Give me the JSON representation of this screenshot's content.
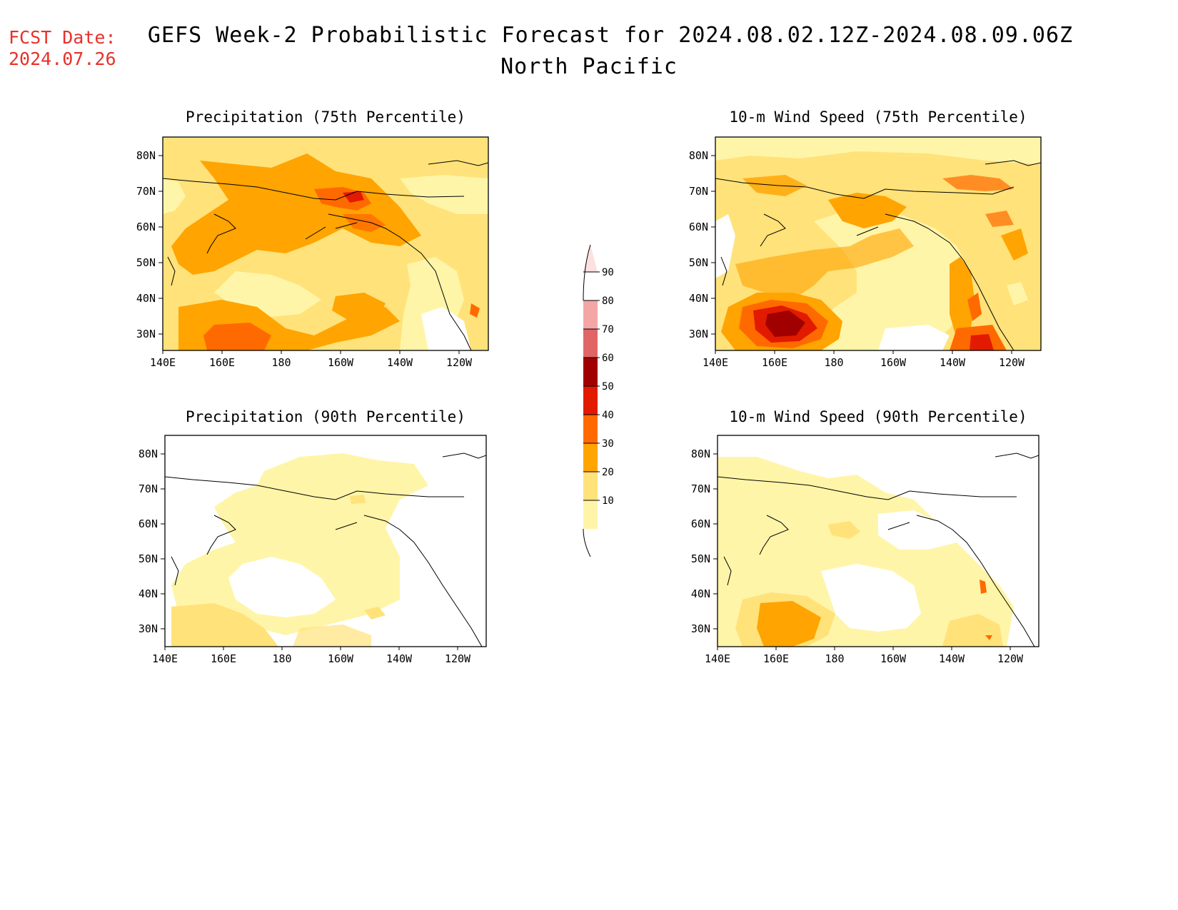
{
  "header": {
    "fcst_label": "FCST Date:",
    "fcst_date": "2024.07.26",
    "title": "GEFS Week-2 Probabilistic Forecast for 2024.08.02.12Z-2024.08.09.06Z",
    "region": "North Pacific"
  },
  "panels": [
    {
      "id": "precip75",
      "title": "Precipitation (75th Percentile)"
    },
    {
      "id": "wind75",
      "title": "10-m Wind Speed (75th Percentile)"
    },
    {
      "id": "precip90",
      "title": "Precipitation (90th Percentile)"
    },
    {
      "id": "wind90",
      "title": "10-m Wind Speed (90th Percentile)"
    }
  ],
  "axes": {
    "lon_ticks": [
      "140E",
      "160E",
      "180",
      "160W",
      "140W",
      "120W"
    ],
    "lat_ticks": [
      "80N",
      "70N",
      "60N",
      "50N",
      "40N",
      "30N"
    ]
  },
  "colorbar": {
    "levels": [
      "10",
      "20",
      "30",
      "40",
      "50",
      "60",
      "70",
      "80",
      "90"
    ],
    "colors": {
      "10-20": "#fff5a8",
      "20-30": "#ffe27a",
      "30-40": "#ffa400",
      "40-50": "#ff6a00",
      "50-60": "#e21a00",
      "60-70": "#a10000",
      "70-80": "#e06666",
      "80-90": "#f4a6a6",
      "90+": "#fde0e0"
    }
  }
}
